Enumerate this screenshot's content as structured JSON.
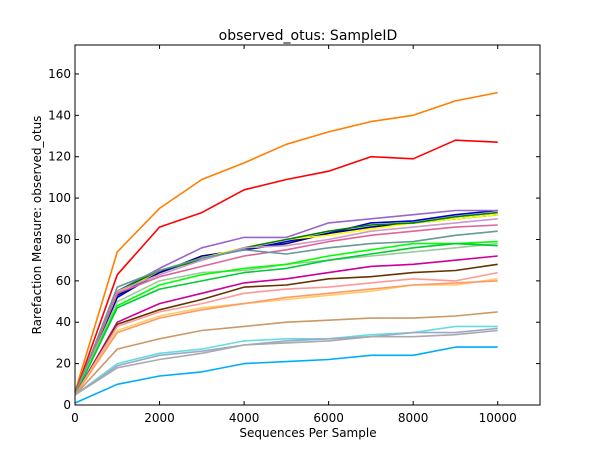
{
  "chart_data": {
    "type": "line",
    "title": "observed_otus: SampleID",
    "xlabel": "Sequences Per Sample",
    "ylabel": "Rarefaction Measure: observed_otus",
    "xlim": [
      0,
      11000
    ],
    "ylim": [
      0,
      174
    ],
    "xticks": [
      0,
      2000,
      4000,
      6000,
      8000,
      10000
    ],
    "yticks": [
      0,
      20,
      40,
      60,
      80,
      100,
      120,
      140,
      160
    ],
    "grid": false,
    "x": [
      10,
      1000,
      2000,
      3000,
      4000,
      5000,
      6000,
      7000,
      8000,
      9000,
      10000
    ],
    "series": [
      {
        "color": "#ff7f00",
        "values": [
          7,
          74,
          95,
          109,
          117,
          126,
          132,
          137,
          140,
          147,
          151
        ]
      },
      {
        "color": "#ff0000",
        "values": [
          6,
          63,
          86,
          93,
          104,
          109,
          113,
          120,
          119,
          128,
          127
        ]
      },
      {
        "color": "#0000cc",
        "values": [
          5,
          52,
          64,
          71,
          75,
          79,
          83,
          88,
          89,
          92,
          94
        ]
      },
      {
        "color": "#000080",
        "values": [
          5,
          53,
          64,
          72,
          75,
          78,
          83,
          86,
          88,
          90,
          92
        ]
      },
      {
        "color": "#ffff00",
        "values": [
          5,
          54,
          65,
          71,
          76,
          80,
          82,
          85,
          88,
          90,
          92
        ]
      },
      {
        "color": "#9966cc",
        "values": [
          6,
          55,
          66,
          76,
          81,
          81,
          88,
          90,
          92,
          94,
          94
        ]
      },
      {
        "color": "#008000",
        "values": [
          5,
          55,
          65,
          70,
          76,
          80,
          84,
          87,
          88,
          91,
          93
        ]
      },
      {
        "color": "#cc99cc",
        "values": [
          5,
          55,
          63,
          70,
          76,
          77,
          80,
          84,
          86,
          88,
          90
        ]
      },
      {
        "color": "#dd6699",
        "values": [
          5,
          54,
          62,
          67,
          72,
          75,
          79,
          82,
          84,
          86,
          87
        ]
      },
      {
        "color": "#669999",
        "values": [
          5,
          57,
          65,
          71,
          75,
          73,
          76,
          78,
          79,
          82,
          84
        ]
      },
      {
        "color": "#99cc99",
        "values": [
          5,
          50,
          60,
          64,
          65,
          68,
          70,
          72,
          74,
          76,
          78
        ]
      },
      {
        "color": "#00ff00",
        "values": [
          5,
          48,
          58,
          63,
          66,
          68,
          72,
          75,
          78,
          78,
          79
        ]
      },
      {
        "color": "#00cc33",
        "values": [
          5,
          47,
          56,
          60,
          64,
          66,
          70,
          73,
          76,
          78,
          77
        ]
      },
      {
        "color": "#cc0099",
        "values": [
          5,
          40,
          49,
          54,
          59,
          61,
          64,
          67,
          68,
          70,
          72
        ]
      },
      {
        "color": "#663300",
        "values": [
          5,
          39,
          46,
          51,
          57,
          58,
          61,
          62,
          64,
          65,
          68
        ]
      },
      {
        "color": "#ff9999",
        "values": [
          5,
          38,
          45,
          49,
          54,
          56,
          57,
          59,
          61,
          60,
          64
        ]
      },
      {
        "color": "#ffcc66",
        "values": [
          5,
          36,
          43,
          47,
          49,
          51,
          53,
          55,
          58,
          58,
          61
        ]
      },
      {
        "color": "#ff9966",
        "values": [
          5,
          35,
          42,
          46,
          49,
          52,
          54,
          56,
          58,
          59,
          60
        ]
      },
      {
        "color": "#cc9966",
        "values": [
          5,
          27,
          32,
          36,
          38,
          40,
          41,
          42,
          42,
          43,
          45
        ]
      },
      {
        "color": "#66dddd",
        "values": [
          5,
          20,
          25,
          27,
          31,
          32,
          32,
          34,
          35,
          38,
          38
        ]
      },
      {
        "color": "#99aacc",
        "values": [
          5,
          19,
          24,
          26,
          29,
          31,
          32,
          33,
          35,
          35,
          37
        ]
      },
      {
        "color": "#aaaaaa",
        "values": [
          5,
          18,
          22,
          25,
          29,
          30,
          31,
          33,
          33,
          34,
          36
        ]
      },
      {
        "color": "#00aaff",
        "values": [
          1,
          10,
          14,
          16,
          20,
          21,
          22,
          24,
          24,
          28,
          28
        ]
      }
    ]
  }
}
